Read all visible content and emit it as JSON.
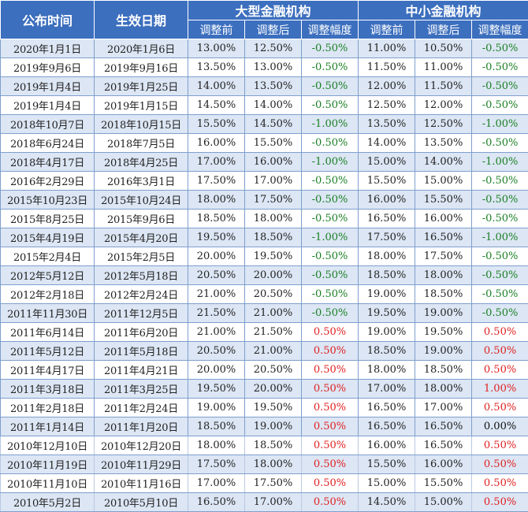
{
  "headers": {
    "announce": "公布时间",
    "effective": "生效日期",
    "large": "大型金融机构",
    "small": "中小金融机构",
    "before": "调整前",
    "after": "调整后",
    "range": "调整幅度"
  },
  "rows": [
    {
      "announce": "2020年1月1日",
      "effective": "2020年1月6日",
      "l_before": "13.00%",
      "l_after": "12.50%",
      "l_change": "-0.50%",
      "s_before": "11.00%",
      "s_after": "10.50%",
      "s_change": "-0.50%"
    },
    {
      "announce": "2019年9月6日",
      "effective": "2019年9月16日",
      "l_before": "13.50%",
      "l_after": "13.00%",
      "l_change": "-0.50%",
      "s_before": "11.50%",
      "s_after": "11.00%",
      "s_change": "-0.50%"
    },
    {
      "announce": "2019年1月4日",
      "effective": "2019年1月25日",
      "l_before": "14.00%",
      "l_after": "13.50%",
      "l_change": "-0.50%",
      "s_before": "12.00%",
      "s_after": "11.50%",
      "s_change": "-0.50%"
    },
    {
      "announce": "2019年1月4日",
      "effective": "2019年1月15日",
      "l_before": "14.50%",
      "l_after": "14.00%",
      "l_change": "-0.50%",
      "s_before": "12.50%",
      "s_after": "12.00%",
      "s_change": "-0.50%"
    },
    {
      "announce": "2018年10月7日",
      "effective": "2018年10月15日",
      "l_before": "15.50%",
      "l_after": "14.50%",
      "l_change": "-1.00%",
      "s_before": "13.50%",
      "s_after": "12.50%",
      "s_change": "-1.00%"
    },
    {
      "announce": "2018年6月24日",
      "effective": "2018年7月5日",
      "l_before": "16.00%",
      "l_after": "15.50%",
      "l_change": "-0.50%",
      "s_before": "14.00%",
      "s_after": "13.50%",
      "s_change": "-0.50%"
    },
    {
      "announce": "2018年4月17日",
      "effective": "2018年4月25日",
      "l_before": "17.00%",
      "l_after": "16.00%",
      "l_change": "-1.00%",
      "s_before": "15.00%",
      "s_after": "14.00%",
      "s_change": "-1.00%"
    },
    {
      "announce": "2016年2月29日",
      "effective": "2016年3月1日",
      "l_before": "17.50%",
      "l_after": "17.00%",
      "l_change": "-0.50%",
      "s_before": "15.50%",
      "s_after": "15.00%",
      "s_change": "-0.50%"
    },
    {
      "announce": "2015年10月23日",
      "effective": "2015年10月24日",
      "l_before": "18.00%",
      "l_after": "17.50%",
      "l_change": "-0.50%",
      "s_before": "16.00%",
      "s_after": "15.50%",
      "s_change": "-0.50%"
    },
    {
      "announce": "2015年8月25日",
      "effective": "2015年9月6日",
      "l_before": "18.50%",
      "l_after": "18.00%",
      "l_change": "-0.50%",
      "s_before": "16.50%",
      "s_after": "16.00%",
      "s_change": "-0.50%"
    },
    {
      "announce": "2015年4月19日",
      "effective": "2015年4月20日",
      "l_before": "19.50%",
      "l_after": "18.50%",
      "l_change": "-1.00%",
      "s_before": "17.50%",
      "s_after": "16.50%",
      "s_change": "-1.00%"
    },
    {
      "announce": "2015年2月4日",
      "effective": "2015年2月5日",
      "l_before": "20.00%",
      "l_after": "19.50%",
      "l_change": "-0.50%",
      "s_before": "18.00%",
      "s_after": "17.50%",
      "s_change": "-0.50%"
    },
    {
      "announce": "2012年5月12日",
      "effective": "2012年5月18日",
      "l_before": "20.50%",
      "l_after": "20.00%",
      "l_change": "-0.50%",
      "s_before": "18.50%",
      "s_after": "18.00%",
      "s_change": "-0.50%"
    },
    {
      "announce": "2012年2月18日",
      "effective": "2012年2月24日",
      "l_before": "21.00%",
      "l_after": "20.50%",
      "l_change": "-0.50%",
      "s_before": "19.00%",
      "s_after": "18.50%",
      "s_change": "-0.50%"
    },
    {
      "announce": "2011年11月30日",
      "effective": "2011年12月5日",
      "l_before": "21.50%",
      "l_after": "21.00%",
      "l_change": "-0.50%",
      "s_before": "19.50%",
      "s_after": "19.00%",
      "s_change": "-0.50%"
    },
    {
      "announce": "2011年6月14日",
      "effective": "2011年6月20日",
      "l_before": "21.00%",
      "l_after": "21.50%",
      "l_change": "0.50%",
      "s_before": "19.00%",
      "s_after": "19.50%",
      "s_change": "0.50%"
    },
    {
      "announce": "2011年5月12日",
      "effective": "2011年5月18日",
      "l_before": "20.50%",
      "l_after": "21.00%",
      "l_change": "0.50%",
      "s_before": "18.50%",
      "s_after": "19.00%",
      "s_change": "0.50%"
    },
    {
      "announce": "2011年4月17日",
      "effective": "2011年4月21日",
      "l_before": "20.00%",
      "l_after": "20.50%",
      "l_change": "0.50%",
      "s_before": "18.00%",
      "s_after": "18.50%",
      "s_change": "0.50%"
    },
    {
      "announce": "2011年3月18日",
      "effective": "2011年3月25日",
      "l_before": "19.50%",
      "l_after": "20.00%",
      "l_change": "0.50%",
      "s_before": "17.00%",
      "s_after": "18.00%",
      "s_change": "1.00%"
    },
    {
      "announce": "2011年2月18日",
      "effective": "2011年2月24日",
      "l_before": "19.00%",
      "l_after": "19.50%",
      "l_change": "0.50%",
      "s_before": "16.50%",
      "s_after": "17.00%",
      "s_change": "0.50%"
    },
    {
      "announce": "2011年1月14日",
      "effective": "2011年1月20日",
      "l_before": "18.50%",
      "l_after": "19.00%",
      "l_change": "0.50%",
      "s_before": "16.50%",
      "s_after": "16.50%",
      "s_change": "0.00%"
    },
    {
      "announce": "2010年12月10日",
      "effective": "2010年12月20日",
      "l_before": "18.00%",
      "l_after": "18.50%",
      "l_change": "0.50%",
      "s_before": "16.00%",
      "s_after": "16.50%",
      "s_change": "0.50%"
    },
    {
      "announce": "2010年11月19日",
      "effective": "2010年11月29日",
      "l_before": "17.50%",
      "l_after": "18.00%",
      "l_change": "0.50%",
      "s_before": "15.50%",
      "s_after": "16.00%",
      "s_change": "0.50%"
    },
    {
      "announce": "2010年11月10日",
      "effective": "2010年11月16日",
      "l_before": "17.00%",
      "l_after": "17.50%",
      "l_change": "0.50%",
      "s_before": "15.00%",
      "s_after": "15.50%",
      "s_change": "0.50%"
    },
    {
      "announce": "2010年5月2日",
      "effective": "2010年5月10日",
      "l_before": "16.50%",
      "l_after": "17.00%",
      "l_change": "0.50%",
      "s_before": "14.50%",
      "s_after": "15.00%",
      "s_change": "0.50%"
    }
  ]
}
